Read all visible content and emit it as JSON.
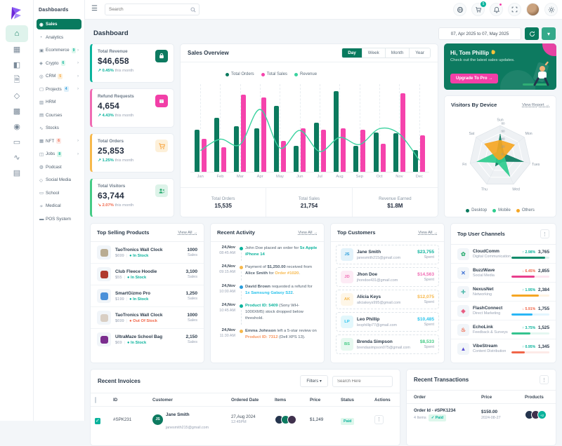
{
  "brand": {
    "name": "Dashboards"
  },
  "topbar": {
    "search_placeholder": "Search",
    "cart_count": "5"
  },
  "sidebar": {
    "header": "Dashboards",
    "items": [
      {
        "label": "Sales",
        "icon": "◉",
        "active": true
      },
      {
        "label": "Analytics",
        "icon": "◔"
      },
      {
        "label": "Ecommerce",
        "icon": "▣",
        "badge": "9",
        "badge_color": "green",
        "chevron": true
      },
      {
        "label": "Crypto",
        "icon": "◈",
        "badge": "6",
        "badge_color": "green",
        "chevron": true
      },
      {
        "label": "CRM",
        "icon": "◎",
        "badge": "5",
        "badge_color": "orange",
        "chevron": true
      },
      {
        "label": "Projects",
        "icon": "▢",
        "badge": "4",
        "badge_color": "blue",
        "chevron": true
      },
      {
        "label": "HRM",
        "icon": "▥"
      },
      {
        "label": "Courses",
        "icon": "▤"
      },
      {
        "label": "Stocks",
        "icon": "∿"
      },
      {
        "label": "NFT",
        "icon": "▦",
        "badge": "6",
        "badge_color": "red",
        "chevron": true
      },
      {
        "label": "Jobs",
        "icon": "◫",
        "badge": "8",
        "badge_color": "green",
        "chevron": true
      },
      {
        "label": "Podcast",
        "icon": "◍"
      },
      {
        "label": "Social Media",
        "icon": "◇"
      },
      {
        "label": "School",
        "icon": "▭"
      },
      {
        "label": "Medical",
        "icon": "≁"
      },
      {
        "label": "POS System",
        "icon": "▬"
      }
    ]
  },
  "page": {
    "title": "Dashboard",
    "date_range": "07, Apr 2025 to 07, May 2025"
  },
  "stats": [
    {
      "label": "Total Revenue",
      "value": "$46,658",
      "change": "0.45%",
      "trend": "up",
      "note": "this month",
      "accent": "#0ab39c",
      "icon": "bag",
      "icon_bg": "#0d7a60",
      "icon_fg": "#ffffff"
    },
    {
      "label": "Refund Requests",
      "value": "4,654",
      "change": "4.43%",
      "trend": "up",
      "note": "this month",
      "accent": "#f06bb3",
      "icon": "box",
      "icon_bg": "#f23fa7",
      "icon_fg": "#ffffff"
    },
    {
      "label": "Total Orders",
      "value": "25,853",
      "change": "1.25%",
      "trend": "up",
      "note": "this month",
      "accent": "#f7b84b",
      "icon": "cart",
      "icon_bg": "#fdf0d9",
      "icon_fg": "#f7a23b"
    },
    {
      "label": "Total Visitors",
      "value": "63,744",
      "change": "2.07%",
      "trend": "down",
      "note": "this month",
      "accent": "#45cb85",
      "icon": "users",
      "icon_bg": "#ddf3e9",
      "icon_fg": "#2fae74"
    }
  ],
  "sales_overview": {
    "title": "Sales Overview",
    "tabs": [
      "Day",
      "Week",
      "Month",
      "Year"
    ],
    "active_tab": "Day",
    "footer": [
      {
        "label": "Total Orders",
        "value": "15,535"
      },
      {
        "label": "Total Sales",
        "value": "21,754"
      },
      {
        "label": "Revenue Earned",
        "value": "$1.8M"
      }
    ]
  },
  "promo": {
    "greeting": "Hi, Tom Phillip",
    "subtitle": "Check out the latest sales updates.",
    "cta": "Upgrade To Pro →"
  },
  "visitors": {
    "title": "Visitors By Device",
    "link": "View Report →"
  },
  "top_products": {
    "title": "Top Selling Products",
    "link": "View All →",
    "items": [
      {
        "name": "TaoTronics Wall Clock",
        "price": "$699",
        "stock": "In Stock",
        "stock_ok": true,
        "value": "1000",
        "unit": "Sales",
        "tone": "#b9ac92"
      },
      {
        "name": "Club Fleece Hoodie",
        "price": "$55",
        "stock": "In Stock",
        "stock_ok": true,
        "value": "3,100",
        "unit": "Sales",
        "tone": "#b03a2e"
      },
      {
        "name": "SmartGizmo Pro",
        "price": "$199",
        "stock": "In Stock",
        "stock_ok": true,
        "value": "1,250",
        "unit": "Sales",
        "tone": "#4a90d9"
      },
      {
        "name": "TaoTronics Wall Clock",
        "price": "$699",
        "stock": "Out Of Stock",
        "stock_ok": false,
        "value": "1000",
        "unit": "Sales",
        "tone": "#d9cfc4"
      },
      {
        "name": "UltraMaze School Bag",
        "price": "$69",
        "stock": "In Stock",
        "stock_ok": true,
        "value": "2,150",
        "unit": "Sales",
        "tone": "#7b2d8e"
      }
    ]
  },
  "recent_activity": {
    "title": "Recent Activity",
    "link": "View All →",
    "items": [
      {
        "date": "24,Nov",
        "time": "08:45 AM",
        "dot": "#0ab39c",
        "segments": [
          {
            "t": "John Doe placed an order for "
          },
          {
            "t": "5x Apple iPhone 14",
            "c": "#0ab39c",
            "b": true
          }
        ]
      },
      {
        "date": "24,Nov",
        "time": "09:15 AM",
        "dot": "#f7b84b",
        "segments": [
          {
            "t": "Payment of "
          },
          {
            "t": "$1,250.00",
            "b": true
          },
          {
            "t": " received from "
          },
          {
            "t": "Alice Smith",
            "b": true
          },
          {
            "t": " for "
          },
          {
            "t": "Order #1020",
            "c": "#f7b84b",
            "b": true
          },
          {
            "t": "."
          }
        ]
      },
      {
        "date": "24,Nov",
        "time": "10:00 AM",
        "dot": "#299cdb",
        "segments": [
          {
            "t": "David Brown",
            "b": true
          },
          {
            "t": " requested a refund for "
          },
          {
            "t": "1x Samsung Galaxy S22",
            "c": "#29c3ec",
            "b": true
          },
          {
            "t": "."
          }
        ]
      },
      {
        "date": "24,Nov",
        "time": "10:45 AM",
        "dot": "#0ab39c",
        "segments": [
          {
            "t": "Product ID: 5409",
            "c": "#0ab39c",
            "b": true
          },
          {
            "t": " (Sony WH-1000XM5) stock dropped below threshold."
          }
        ]
      },
      {
        "date": "24,Nov",
        "time": "11:30 AM",
        "dot": "#f7b84b",
        "segments": [
          {
            "t": "Emma Johnson",
            "b": true
          },
          {
            "t": " left a 5-star review on "
          },
          {
            "t": "Product ID: 7312",
            "c": "#f7925a",
            "b": true
          },
          {
            "t": " (Dell XPS 13)."
          }
        ]
      }
    ]
  },
  "top_customers": {
    "title": "Top Customers",
    "link": "View All →",
    "items": [
      {
        "initials": "JS",
        "name": "Jane Smith",
        "email": "janesmith215@gmail.com",
        "amount": "$23,755",
        "unit": "Spent",
        "color": "#299cdb",
        "amount_color": "#0ab39c"
      },
      {
        "initials": "JD",
        "name": "Jhon Doe",
        "email": "jhondoe431@gmail.com",
        "amount": "$14,563",
        "unit": "Spent",
        "color": "#f06bb3",
        "amount_color": "#f06bb3"
      },
      {
        "initials": "AK",
        "name": "Alicia Keys",
        "email": "aliciakeys995@gmail.com",
        "amount": "$12,075",
        "unit": "Spent",
        "color": "#f7b84b",
        "amount_color": "#f7b84b"
      },
      {
        "initials": "LP",
        "name": "Leo Phillip",
        "email": "leophillip77@gmail.com",
        "amount": "$10,485",
        "unit": "Spent",
        "color": "#29c3ec",
        "amount_color": "#29c3ec"
      },
      {
        "initials": "BS",
        "name": "Brenda Simpson",
        "email": "brendasimpson075@gmail.com",
        "amount": "$8,533",
        "unit": "Spent",
        "color": "#45cb85",
        "amount_color": "#45cb85"
      }
    ]
  },
  "top_channels": {
    "title": "Top User Channels",
    "items": [
      {
        "name": "CloudComm",
        "category": "Digital Communication",
        "change": "2.98%",
        "trend": "up",
        "value": "3,765",
        "bar_color": "#0f8a6a",
        "bar_pct": 88,
        "glyph": "✿",
        "glyph_color": "#2fae74"
      },
      {
        "name": "BuzzWave",
        "category": "Social Media",
        "change": "6.45%",
        "trend": "down",
        "value": "2,855",
        "bar_color": "#e83e8c",
        "bar_pct": 62,
        "glyph": "✕",
        "glyph_color": "#3b6fd4"
      },
      {
        "name": "NexusNet",
        "category": "Networking",
        "change": "1.95%",
        "trend": "up",
        "value": "2,384",
        "bar_color": "#f5a623",
        "bar_pct": 72,
        "glyph": "✛",
        "glyph_color": "#2fae9c"
      },
      {
        "name": "FlashConnect",
        "category": "Direct Marketing",
        "change": "5.91%",
        "trend": "down",
        "value": "1,755",
        "bar_color": "#29b6f6",
        "bar_pct": 55,
        "glyph": "◈",
        "glyph_color": "#e8567c"
      },
      {
        "name": "EchoLink",
        "category": "Feedback & Surveys",
        "change": "3.75%",
        "trend": "up",
        "value": "1,525",
        "bar_color": "#34c38f",
        "bar_pct": 50,
        "glyph": "♨",
        "glyph_color": "#f06548"
      },
      {
        "name": "VibeStream",
        "category": "Content Distribution",
        "change": "0.95%",
        "trend": "up",
        "value": "1,345",
        "bar_color": "#f06548",
        "bar_pct": 35,
        "glyph": "▲",
        "glyph_color": "#5b4fd4"
      }
    ]
  },
  "invoices": {
    "title": "Recent Invoices",
    "filters_label": "Filters ▾",
    "search_placeholder": "Search Here",
    "columns": [
      "ID",
      "Customer",
      "Ordered Date",
      "Items",
      "Price",
      "Status",
      "Actions"
    ],
    "rows": [
      {
        "id": "#SPK231",
        "customer": "Jane Smith",
        "email": "janesmith215@gmail.com",
        "initials": "JS",
        "date": "27,Aug 2024",
        "time": "12:45PM",
        "price": "$1,249",
        "status": "Paid",
        "checked": true,
        "item_colors": [
          "#24344d",
          "#0d7a60",
          "#40314d"
        ]
      }
    ]
  },
  "transactions": {
    "title": "Recent Transactions",
    "columns": [
      "Order",
      "Price",
      "Products"
    ],
    "rows": [
      {
        "order": "Order Id - #SPK1234",
        "items": "4 Items",
        "status": "Paid",
        "price": "$150.00",
        "date": "2024-08-27",
        "product_colors": [
          "#24344d",
          "#40314d"
        ],
        "extra": "+2"
      }
    ]
  },
  "chart_data": [
    {
      "type": "bar",
      "title": "Sales Overview",
      "categories": [
        "Jan",
        "Feb",
        "Mar",
        "Apr",
        "May",
        "Jun",
        "Jul",
        "Aug",
        "Sep",
        "Oct",
        "Nov",
        "Dec"
      ],
      "series": [
        {
          "name": "Total Orders",
          "type": "bar",
          "color": "#0b7a5e",
          "values": [
            48,
            62,
            52,
            50,
            75,
            30,
            56,
            92,
            30,
            45,
            44,
            25
          ]
        },
        {
          "name": "Total Sales",
          "type": "bar",
          "color": "#f543ac",
          "values": [
            38,
            28,
            88,
            85,
            35,
            50,
            48,
            50,
            48,
            32,
            90,
            42
          ]
        },
        {
          "name": "Revenue",
          "type": "line",
          "color": "#3ad29f",
          "values": [
            25,
            38,
            32,
            72,
            28,
            48,
            24,
            40,
            32,
            50,
            44,
            14
          ]
        }
      ],
      "ylim": [
        0,
        100
      ],
      "legend_position": "top",
      "grid": "vertical-dashed"
    },
    {
      "type": "radar",
      "title": "Visitors By Device",
      "axes": [
        "Sun",
        "Mon",
        "Tues",
        "Wed",
        "Thu",
        "Fri",
        "Sat"
      ],
      "rings": [
        0,
        20,
        40,
        60,
        80
      ],
      "series": [
        {
          "name": "Desktop",
          "color": "#0b7a5e",
          "values": [
            58,
            12,
            62,
            15,
            28,
            10,
            12
          ]
        },
        {
          "name": "Mobile",
          "color": "#2ecc8e",
          "values": [
            20,
            8,
            12,
            58,
            18,
            62,
            15
          ]
        },
        {
          "name": "Others",
          "color": "#f5a623",
          "values": [
            42,
            48,
            10,
            8,
            10,
            12,
            52
          ]
        }
      ],
      "legend_position": "bottom"
    }
  ]
}
